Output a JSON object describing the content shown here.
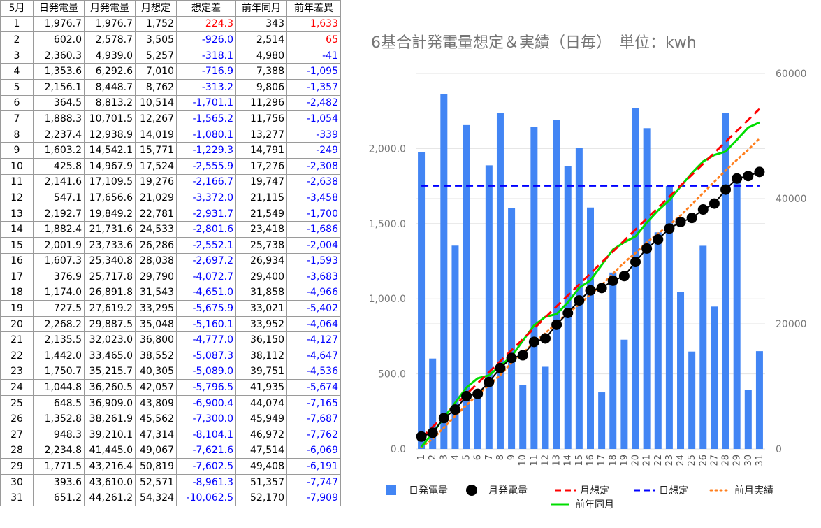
{
  "table": {
    "headers": [
      "5月",
      "日発電量",
      "月発電量",
      "月想定",
      "想定差",
      "前年同月",
      "前年差異"
    ],
    "rows": [
      [
        "1",
        "1,976.7",
        "1,976.7",
        "1,752",
        "224.3",
        "343",
        "1,633"
      ],
      [
        "2",
        "602.0",
        "2,578.7",
        "3,505",
        "-926.0",
        "2,514",
        "65"
      ],
      [
        "3",
        "2,360.3",
        "4,939.0",
        "5,257",
        "-318.1",
        "4,980",
        "-41"
      ],
      [
        "4",
        "1,353.6",
        "6,292.6",
        "7,010",
        "-716.9",
        "7,388",
        "-1,095"
      ],
      [
        "5",
        "2,156.1",
        "8,448.7",
        "8,762",
        "-313.2",
        "9,806",
        "-1,357"
      ],
      [
        "6",
        "364.5",
        "8,813.2",
        "10,514",
        "-1,701.1",
        "11,296",
        "-2,482"
      ],
      [
        "7",
        "1,888.3",
        "10,701.5",
        "12,267",
        "-1,565.2",
        "11,756",
        "-1,054"
      ],
      [
        "8",
        "2,237.4",
        "12,938.9",
        "14,019",
        "-1,080.1",
        "13,277",
        "-339"
      ],
      [
        "9",
        "1,603.2",
        "14,542.1",
        "15,771",
        "-1,229.3",
        "14,791",
        "-249"
      ],
      [
        "10",
        "425.8",
        "14,967.9",
        "17,524",
        "-2,555.9",
        "17,276",
        "-2,308"
      ],
      [
        "11",
        "2,141.6",
        "17,109.5",
        "19,276",
        "-2,166.7",
        "19,747",
        "-2,638"
      ],
      [
        "12",
        "547.1",
        "17,656.6",
        "21,029",
        "-3,372.0",
        "21,115",
        "-3,458"
      ],
      [
        "13",
        "2,192.7",
        "19,849.2",
        "22,781",
        "-2,931.7",
        "21,549",
        "-1,700"
      ],
      [
        "14",
        "1,882.4",
        "21,731.6",
        "24,533",
        "-2,801.6",
        "23,418",
        "-1,686"
      ],
      [
        "15",
        "2,001.9",
        "23,733.6",
        "26,286",
        "-2,552.1",
        "25,738",
        "-2,004"
      ],
      [
        "16",
        "1,607.3",
        "25,340.8",
        "28,038",
        "-2,697.2",
        "26,934",
        "-1,593"
      ],
      [
        "17",
        "376.9",
        "25,717.8",
        "29,790",
        "-4,072.7",
        "29,400",
        "-3,683"
      ],
      [
        "18",
        "1,174.0",
        "26,891.8",
        "31,543",
        "-4,651.0",
        "31,858",
        "-4,966"
      ],
      [
        "19",
        "727.5",
        "27,619.2",
        "33,295",
        "-5,675.9",
        "33,021",
        "-5,402"
      ],
      [
        "20",
        "2,268.2",
        "29,887.5",
        "35,048",
        "-5,160.1",
        "33,952",
        "-4,064"
      ],
      [
        "21",
        "2,135.5",
        "32,023.0",
        "36,800",
        "-4,777.0",
        "36,150",
        "-4,127"
      ],
      [
        "22",
        "1,442.0",
        "33,465.0",
        "38,552",
        "-5,087.3",
        "38,112",
        "-4,647"
      ],
      [
        "23",
        "1,750.7",
        "35,215.7",
        "40,305",
        "-5,089.0",
        "39,751",
        "-4,536"
      ],
      [
        "24",
        "1,044.8",
        "36,260.5",
        "42,057",
        "-5,796.5",
        "41,935",
        "-5,674"
      ],
      [
        "25",
        "648.5",
        "36,909.0",
        "43,809",
        "-6,900.4",
        "44,074",
        "-7,165"
      ],
      [
        "26",
        "1,352.8",
        "38,261.9",
        "45,562",
        "-7,300.0",
        "45,949",
        "-7,687"
      ],
      [
        "27",
        "948.3",
        "39,210.1",
        "47,314",
        "-8,104.1",
        "46,972",
        "-7,762"
      ],
      [
        "28",
        "2,234.8",
        "41,445.0",
        "49,067",
        "-7,621.6",
        "47,514",
        "-6,069"
      ],
      [
        "29",
        "1,771.5",
        "43,216.4",
        "50,819",
        "-7,602.5",
        "49,408",
        "-6,191"
      ],
      [
        "30",
        "393.6",
        "43,610.0",
        "52,571",
        "-8,961.3",
        "51,357",
        "-7,747"
      ],
      [
        "31",
        "651.2",
        "44,261.2",
        "54,324",
        "-10,062.5",
        "52,170",
        "-7,909"
      ]
    ]
  },
  "colors": {
    "positive": "#ff0000",
    "negative": "#0000ff",
    "bar": "#4285f4",
    "monthly": "#000000",
    "monthly_plan": "#ff0000",
    "daily_plan": "#0000ff",
    "prev_month": "#ff7f1e",
    "prev_year": "#00dd00"
  },
  "chart_data": {
    "type": "bar",
    "title": "6基合計発電量想定＆実績（日毎）　単位：kwh",
    "categories": [
      "1",
      "2",
      "3",
      "4",
      "5",
      "6",
      "7",
      "8",
      "9",
      "10",
      "11",
      "12",
      "13",
      "14",
      "15",
      "16",
      "17",
      "18",
      "19",
      "20",
      "21",
      "22",
      "23",
      "24",
      "25",
      "26",
      "27",
      "28",
      "29",
      "30",
      "31"
    ],
    "y_left": {
      "ticks": [
        "0.0",
        "500.0",
        "1,000.0",
        "1,500.0",
        "2,000.0"
      ],
      "range": [
        0,
        2500
      ]
    },
    "y_right": {
      "ticks": [
        "0",
        "20000",
        "40000",
        "60000"
      ],
      "range": [
        0,
        60000
      ]
    },
    "grid": true,
    "legend_position": "bottom",
    "series": [
      {
        "name": "日発電量",
        "type": "bar",
        "axis": "left",
        "values": [
          1976.7,
          602.0,
          2360.3,
          1353.6,
          2156.1,
          364.5,
          1888.3,
          2237.4,
          1603.2,
          425.8,
          2141.6,
          547.1,
          2192.7,
          1882.4,
          2001.9,
          1607.3,
          376.9,
          1174.0,
          727.5,
          2268.2,
          2135.5,
          1442.0,
          1750.7,
          1044.8,
          648.5,
          1352.8,
          948.3,
          2234.8,
          1771.5,
          393.6,
          651.2
        ]
      },
      {
        "name": "月発電量",
        "type": "line-marker",
        "axis": "right",
        "values": [
          1976.7,
          2578.7,
          4939.0,
          6292.6,
          8448.7,
          8813.2,
          10701.5,
          12938.9,
          14542.1,
          14967.9,
          17109.5,
          17656.6,
          19849.2,
          21731.6,
          23733.6,
          25340.8,
          25717.8,
          26891.8,
          27619.2,
          29887.5,
          32023.0,
          33465.0,
          35215.7,
          36260.5,
          36909.0,
          38261.9,
          39210.1,
          41445.0,
          43216.4,
          43610.0,
          44261.2
        ]
      },
      {
        "name": "月想定",
        "type": "dashed-line",
        "axis": "right",
        "values": [
          1752,
          3505,
          5257,
          7010,
          8762,
          10514,
          12267,
          14019,
          15771,
          17524,
          19276,
          21029,
          22781,
          24533,
          26286,
          28038,
          29790,
          31543,
          33295,
          35048,
          36800,
          38552,
          40305,
          42057,
          43809,
          45562,
          47314,
          49067,
          50819,
          52571,
          54324
        ]
      },
      {
        "name": "日想定",
        "type": "dashed-line",
        "axis": "left",
        "values": [
          1752,
          1752,
          1752,
          1752,
          1752,
          1752,
          1752,
          1752,
          1752,
          1752,
          1752,
          1752,
          1752,
          1752,
          1752,
          1752,
          1752,
          1752,
          1752,
          1752,
          1752,
          1752,
          1752,
          1752,
          1752,
          1752,
          1752,
          1752,
          1752,
          1752,
          1752
        ]
      },
      {
        "name": "前月実績",
        "type": "dotted-line",
        "axis": "right",
        "values": [
          300,
          1600,
          3400,
          5300,
          7000,
          8700,
          10200,
          11800,
          13800,
          15300,
          17000,
          18500,
          20100,
          21700,
          23100,
          24700,
          26200,
          28000,
          29800,
          31300,
          33000,
          34400,
          35800,
          37300,
          39100,
          40900,
          42700,
          44500,
          46200,
          47800,
          49600
        ]
      },
      {
        "name": "前年同月",
        "type": "line",
        "axis": "right",
        "values": [
          343,
          2514,
          4980,
          7388,
          9806,
          11296,
          11756,
          13277,
          14791,
          17276,
          19747,
          21115,
          21549,
          23418,
          25738,
          26934,
          29400,
          31858,
          33021,
          33952,
          36150,
          38112,
          39751,
          41935,
          44074,
          45949,
          46972,
          47514,
          49408,
          51357,
          52170
        ]
      }
    ]
  }
}
